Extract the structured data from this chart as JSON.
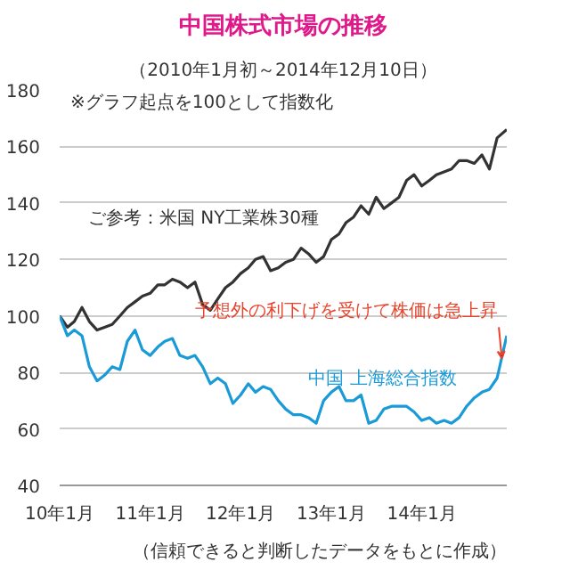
{
  "chart_data": {
    "type": "line",
    "title": "中国株式市場の推移",
    "subtitle": "（2010年1月初～2014年12月10日）",
    "x": [
      "2010-01",
      "2010-02",
      "2010-03",
      "2010-04",
      "2010-05",
      "2010-06",
      "2010-07",
      "2010-08",
      "2010-09",
      "2010-10",
      "2010-11",
      "2010-12",
      "2011-01",
      "2011-02",
      "2011-03",
      "2011-04",
      "2011-05",
      "2011-06",
      "2011-07",
      "2011-08",
      "2011-09",
      "2011-10",
      "2011-11",
      "2011-12",
      "2012-01",
      "2012-02",
      "2012-03",
      "2012-04",
      "2012-05",
      "2012-06",
      "2012-07",
      "2012-08",
      "2012-09",
      "2012-10",
      "2012-11",
      "2012-12",
      "2013-01",
      "2013-02",
      "2013-03",
      "2013-04",
      "2013-05",
      "2013-06",
      "2013-07",
      "2013-08",
      "2013-09",
      "2013-10",
      "2013-11",
      "2013-12",
      "2014-01",
      "2014-02",
      "2014-03",
      "2014-04",
      "2014-05",
      "2014-06",
      "2014-07",
      "2014-08",
      "2014-09",
      "2014-10",
      "2014-11",
      "2014-12-10"
    ],
    "series": [
      {
        "name": "ご参考：米国 NY工業株30種",
        "color": "#333333",
        "values": [
          100,
          96,
          98,
          103,
          98,
          95,
          96,
          97,
          100,
          103,
          105,
          107,
          108,
          111,
          111,
          113,
          112,
          110,
          112,
          104,
          102,
          106,
          110,
          112,
          115,
          117,
          120,
          121,
          116,
          117,
          119,
          120,
          124,
          122,
          119,
          121,
          127,
          129,
          133,
          135,
          139,
          136,
          142,
          138,
          140,
          142,
          148,
          150,
          146,
          148,
          150,
          151,
          152,
          155,
          155,
          154,
          157,
          152,
          163,
          166
        ]
      },
      {
        "name": "中国 上海総合指数",
        "color": "#1a9bd7",
        "values": [
          100,
          93,
          95,
          93,
          82,
          77,
          79,
          82,
          81,
          91,
          95,
          88,
          86,
          89,
          91,
          92,
          86,
          85,
          86,
          82,
          76,
          78,
          76,
          69,
          72,
          76,
          73,
          75,
          74,
          70,
          67,
          65,
          65,
          64,
          62,
          70,
          73,
          75,
          70,
          70,
          72,
          62,
          63,
          67,
          68,
          68,
          68,
          66,
          63,
          64,
          62,
          63,
          62,
          64,
          68,
          71,
          73,
          74,
          78,
          93
        ]
      }
    ],
    "ylim": [
      40,
      180
    ],
    "yticks": [
      40,
      60,
      80,
      100,
      120,
      140,
      160,
      180
    ],
    "xlim": [
      "2010-01-01",
      "2014-12-10"
    ],
    "xticks": [
      {
        "value": "2010-01-01",
        "label": "10年1月"
      },
      {
        "value": "2011-01-01",
        "label": "11年1月"
      },
      {
        "value": "2012-01-01",
        "label": "12年1月"
      },
      {
        "value": "2013-01-01",
        "label": "13年1月"
      },
      {
        "value": "2014-01-01",
        "label": "14年1月"
      }
    ],
    "grid": "y",
    "annotations": [
      "※グラフ起点を100として指数化",
      {
        "text": "予想外の利下げを受けて株価は急上昇",
        "x": "2014-11-20",
        "y": 84
      },
      "（信頼できると判断したデータをもとに作成）"
    ]
  }
}
